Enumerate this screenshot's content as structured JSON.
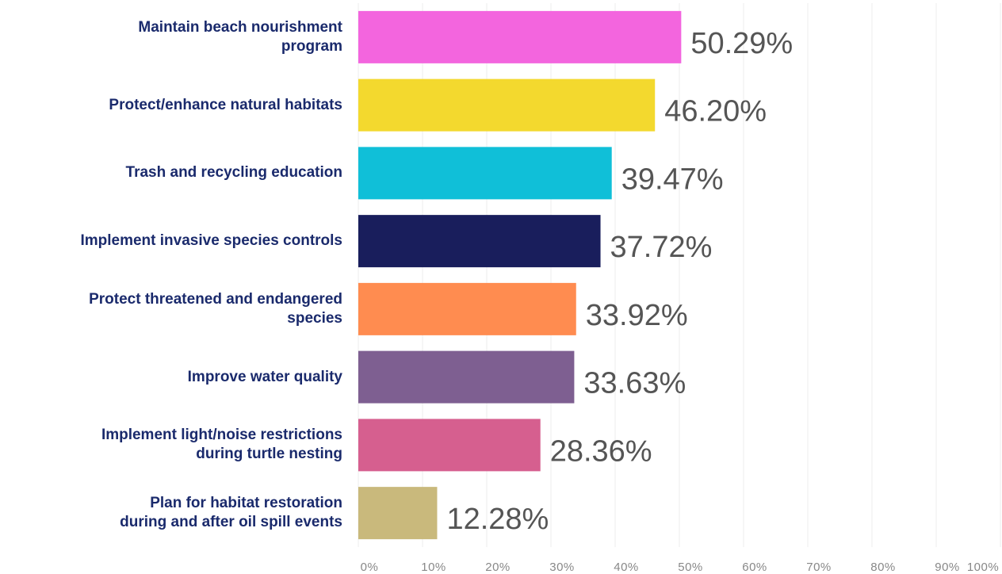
{
  "chart_data": {
    "type": "bar",
    "orientation": "horizontal",
    "categories": [
      "Maintain beach nourishment\nprogram",
      "Protect/enhance natural habitats",
      "Trash and recycling education",
      "Implement invasive species controls",
      "Protect threatened and endangered\nspecies",
      "Improve water quality",
      "Implement light/noise restrictions\nduring turtle nesting",
      "Plan for habitat restoration\nduring and after oil spill events"
    ],
    "values": [
      50.29,
      46.2,
      39.47,
      37.72,
      33.92,
      33.63,
      28.36,
      12.28
    ],
    "value_labels": [
      "50.29%",
      "46.20%",
      "39.47%",
      "37.72%",
      "33.92%",
      "33.63%",
      "28.36%",
      "12.28%"
    ],
    "colors": [
      "#f365de",
      "#f3d92e",
      "#10bfd8",
      "#191e5c",
      "#ff8c50",
      "#7e5f91",
      "#d65f8f",
      "#c9b97c"
    ],
    "xlim": [
      0,
      100
    ],
    "xticks": [
      {
        "value": 0,
        "label": "0%"
      },
      {
        "value": 10,
        "label": "10%"
      },
      {
        "value": 20,
        "label": "20%"
      },
      {
        "value": 30,
        "label": "30%"
      },
      {
        "value": 40,
        "label": "40%"
      },
      {
        "value": 50,
        "label": "50%"
      },
      {
        "value": 60,
        "label": "60%"
      },
      {
        "value": 70,
        "label": "70%"
      },
      {
        "value": 80,
        "label": "80%"
      },
      {
        "value": 90,
        "label": "90%"
      },
      {
        "value": 100,
        "label": "100%"
      }
    ],
    "grid": true
  }
}
